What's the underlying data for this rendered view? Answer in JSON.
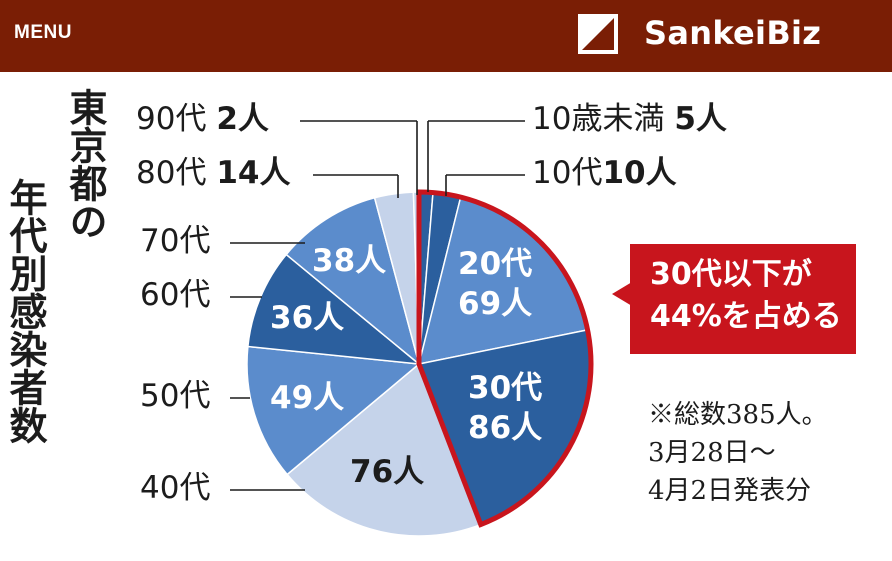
{
  "header": {
    "menu_label": "MENU",
    "brand": "SankeiBiz",
    "background": "#7a1e05"
  },
  "title_line1": "東京都の",
  "title_line2": "年代別感染者数",
  "chart_data": {
    "type": "pie",
    "title": "東京都の年代別感染者数",
    "total": 385,
    "categories": [
      "10歳未満",
      "10代",
      "20代",
      "30代",
      "40代",
      "50代",
      "60代",
      "70代",
      "80代",
      "90代"
    ],
    "values": [
      5,
      10,
      69,
      86,
      76,
      49,
      36,
      38,
      14,
      2
    ],
    "label_counts": [
      "5人",
      "10人",
      "69人",
      "86人",
      "76人",
      "49人",
      "36人",
      "38人",
      "14人",
      "2人"
    ],
    "colors": [
      "#2b5f9e",
      "#2b5f9e",
      "#5b8ccc",
      "#2b5f9e",
      "#c5d3ea",
      "#5b8ccc",
      "#2b5f9e",
      "#5b8ccc",
      "#c5d3ea",
      "#c5d3ea"
    ],
    "highlight_group": [
      "10歳未満",
      "10代",
      "20代",
      "30代"
    ],
    "highlight_color": "#c8151d"
  },
  "outer_labels": {
    "age_90": "90代",
    "count_90": "2人",
    "age_80": "80代",
    "count_80": "14人",
    "age_70": "70代",
    "age_60": "60代",
    "age_50": "50代",
    "age_40": "40代",
    "age_u10": "10歳未満",
    "count_u10": "5人",
    "age_10": "10代",
    "count_10": "10人"
  },
  "inner_labels": {
    "age_20": "20代",
    "count_20": "69人",
    "age_30": "30代",
    "count_30": "86人",
    "count_40": "76人",
    "count_50": "49人",
    "count_60": "36人",
    "count_70": "38人"
  },
  "callout": {
    "line1": "30代以下が",
    "line2": "44%を占める"
  },
  "note": {
    "line1": "※総数385人。",
    "line2": "3月28日〜",
    "line3": "4月2日発表分"
  }
}
